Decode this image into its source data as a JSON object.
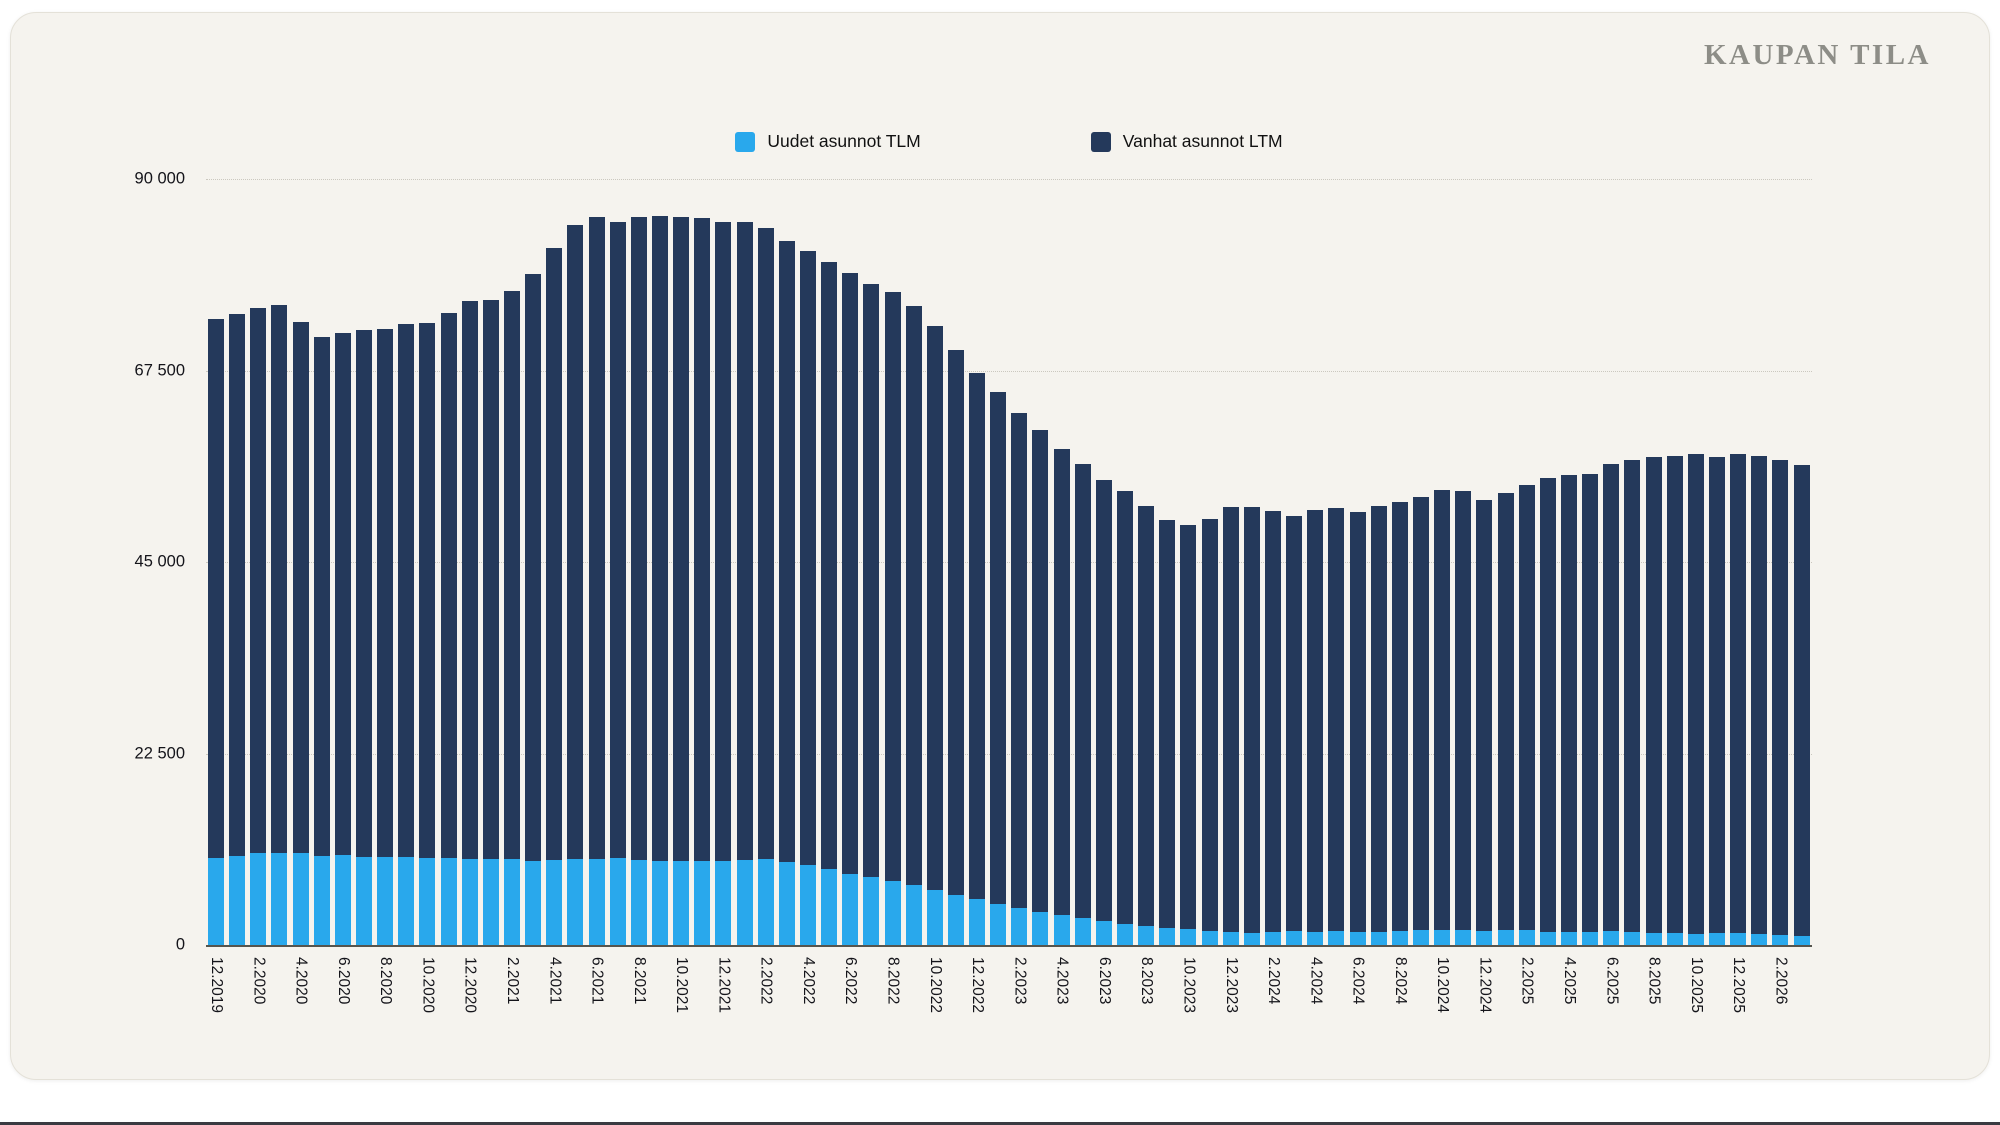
{
  "brand": "KAUPAN TILA",
  "legend": [
    {
      "label": "Uudet asunnot TLM",
      "color": "#29a8ec"
    },
    {
      "label": "Vanhat asunnot LTM",
      "color": "#24395b"
    }
  ],
  "colors": {
    "card_background": "#f5f3ee",
    "page_background": "#ffffff",
    "new_apartments": "#29a8ec",
    "old_apartments": "#24395b",
    "brand_text": "#8d8d87",
    "axis_text": "#14141a"
  },
  "chart_data": {
    "type": "bar",
    "stacked": true,
    "title": "",
    "xlabel": "",
    "ylabel": "",
    "ylim": [
      0,
      90000
    ],
    "ytick_labels": [
      "0",
      "22 500",
      "45 000",
      "67 500",
      "90 000"
    ],
    "ytick_values": [
      0,
      22500,
      45000,
      67500,
      90000
    ],
    "x_label_every": 2,
    "grid": "horizontal-dotted",
    "legend_position": "top-center",
    "categories": [
      "12.2019",
      "1.2020",
      "2.2020",
      "3.2020",
      "4.2020",
      "5.2020",
      "6.2020",
      "7.2020",
      "8.2020",
      "9.2020",
      "10.2020",
      "11.2020",
      "12.2020",
      "1.2021",
      "2.2021",
      "3.2021",
      "4.2021",
      "5.2021",
      "6.2021",
      "7.2021",
      "8.2021",
      "9.2021",
      "10.2021",
      "11.2021",
      "12.2021",
      "1.2022",
      "2.2022",
      "3.2022",
      "4.2022",
      "5.2022",
      "6.2022",
      "7.2022",
      "8.2022",
      "9.2022",
      "10.2022",
      "11.2022",
      "12.2022",
      "1.2023",
      "2.2023",
      "3.2023",
      "4.2023",
      "5.2023",
      "6.2023",
      "7.2023",
      "8.2023",
      "9.2023",
      "10.2023",
      "11.2023",
      "12.2023",
      "1.2024",
      "2.2024",
      "3.2024",
      "4.2024",
      "5.2024",
      "6.2024",
      "7.2024",
      "8.2024",
      "9.2024",
      "10.2024",
      "11.2024",
      "12.2024",
      "1.2025",
      "2.2025",
      "3.2025",
      "4.2025",
      "5.2025",
      "6.2025",
      "7.2025",
      "8.2025",
      "9.2025",
      "10.2025",
      "11.2025",
      "12.2025",
      "1.2026",
      "2.2026",
      "3.2026"
    ],
    "series": [
      {
        "name": "Uudet asunnot TLM",
        "color": "#29a8ec",
        "values": [
          10200,
          10450,
          10800,
          10850,
          10850,
          10500,
          10550,
          10350,
          10350,
          10300,
          10250,
          10250,
          10150,
          10150,
          10100,
          9900,
          9950,
          10050,
          10150,
          10200,
          9950,
          9900,
          9900,
          9850,
          9900,
          10000,
          10150,
          9700,
          9350,
          8950,
          8400,
          8000,
          7500,
          7000,
          6450,
          5850,
          5350,
          4850,
          4400,
          3900,
          3500,
          3150,
          2800,
          2500,
          2250,
          2050,
          1850,
          1700,
          1550,
          1450,
          1550,
          1700,
          1550,
          1650,
          1550,
          1550,
          1650,
          1750,
          1750,
          1800,
          1650,
          1750,
          1800,
          1500,
          1500,
          1550,
          1650,
          1550,
          1450,
          1400,
          1350,
          1400,
          1450,
          1250,
          1200,
          1100
        ]
      },
      {
        "name": "Vanhat asunnot LTM",
        "color": "#24395b",
        "values": [
          63400,
          63650,
          64000,
          64350,
          62350,
          60900,
          61350,
          61950,
          62000,
          62700,
          62850,
          63950,
          65550,
          65650,
          66700,
          68900,
          71950,
          74550,
          75350,
          74800,
          75550,
          75800,
          75600,
          75550,
          75100,
          74900,
          74050,
          73000,
          72150,
          71350,
          70500,
          69700,
          69200,
          68100,
          66250,
          64050,
          61850,
          60150,
          58100,
          56600,
          54800,
          53350,
          51800,
          50900,
          49350,
          47850,
          47450,
          48300,
          49950,
          50050,
          49450,
          48700,
          49550,
          49650,
          49350,
          50050,
          50450,
          50850,
          51750,
          51500,
          50650,
          51350,
          52200,
          53400,
          53700,
          53850,
          54850,
          55450,
          55850,
          56100,
          56350,
          55900,
          56250,
          56150,
          55800,
          55300
        ]
      }
    ]
  }
}
